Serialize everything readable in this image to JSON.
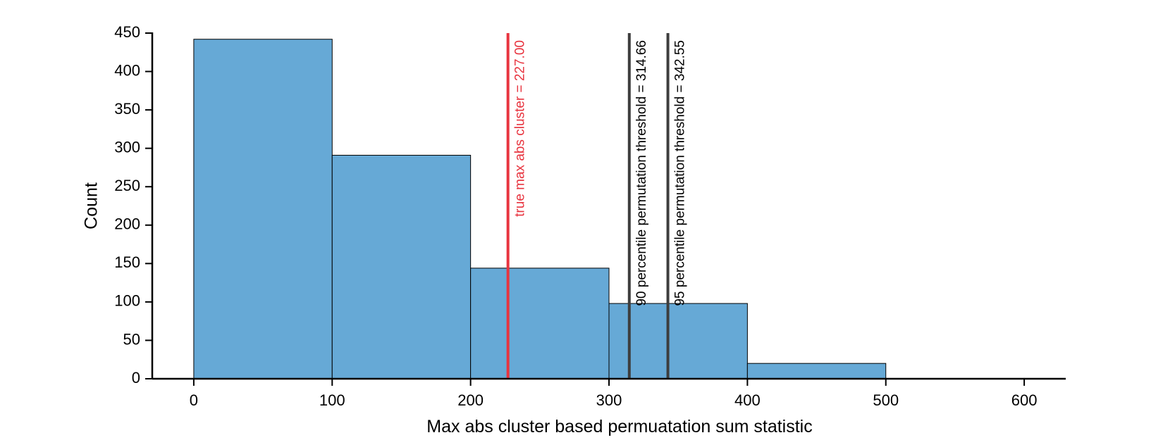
{
  "chart_data": {
    "type": "bar",
    "subtype": "histogram",
    "xlabel": "Max abs cluster based permuatation sum statistic",
    "ylabel": "Count",
    "xlim": [
      -30,
      630
    ],
    "ylim": [
      0,
      450
    ],
    "xticks": [
      "0",
      "100",
      "200",
      "300",
      "400",
      "500",
      "600"
    ],
    "yticks": [
      "0",
      "50",
      "100",
      "150",
      "200",
      "250",
      "300",
      "350",
      "400",
      "450"
    ],
    "bins": [
      {
        "start": 0,
        "end": 100,
        "value": 442
      },
      {
        "start": 100,
        "end": 200,
        "value": 291
      },
      {
        "start": 200,
        "end": 300,
        "value": 144
      },
      {
        "start": 300,
        "end": 400,
        "value": 98
      },
      {
        "start": 400,
        "end": 500,
        "value": 20
      }
    ],
    "bar_color": "#66a9d6",
    "vlines": [
      {
        "x": 227.0,
        "label": "true max abs cluster = 227.00",
        "color": "#e8343f"
      },
      {
        "x": 314.66,
        "label": "90 percentile permutation threshold = 314.66",
        "color": "#3d3d3d"
      },
      {
        "x": 342.55,
        "label": "95 percentile permutation threshold = 342.55",
        "color": "#3d3d3d"
      }
    ],
    "grid": false
  }
}
